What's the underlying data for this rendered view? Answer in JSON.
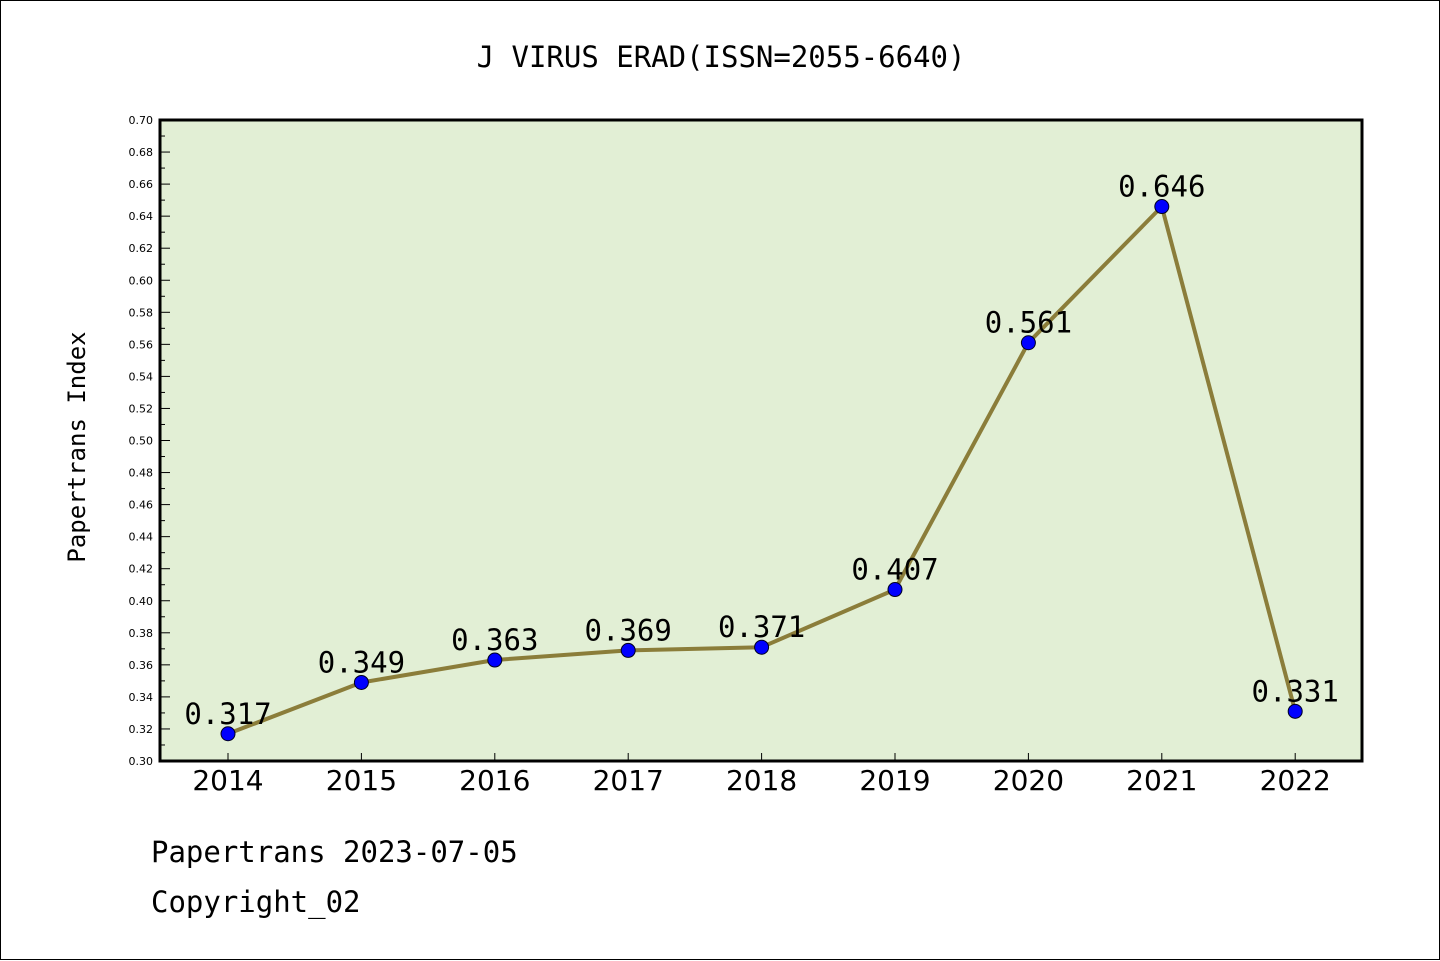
{
  "chart_data": {
    "type": "line",
    "title": "J VIRUS ERAD(ISSN=2055-6640)",
    "xlabel": "",
    "ylabel": "Papertrans Index",
    "categories": [
      "2014",
      "2015",
      "2016",
      "2017",
      "2018",
      "2019",
      "2020",
      "2021",
      "2022"
    ],
    "values": [
      0.317,
      0.349,
      0.363,
      0.369,
      0.371,
      0.407,
      0.561,
      0.646,
      0.331
    ],
    "data_labels": [
      "0.317",
      "0.349",
      "0.363",
      "0.369",
      "0.371",
      "0.407",
      "0.561",
      "0.646",
      "0.331"
    ],
    "ylim": [
      0.3,
      0.7
    ],
    "yticks": [
      "0.30",
      "0.32",
      "0.34",
      "0.36",
      "0.38",
      "0.40",
      "0.42",
      "0.44",
      "0.46",
      "0.48",
      "0.50",
      "0.52",
      "0.54",
      "0.56",
      "0.58",
      "0.60",
      "0.62",
      "0.64",
      "0.66",
      "0.68",
      "0.70"
    ],
    "grid": false,
    "colors": {
      "plot_background": "#e2efd5",
      "line": "#8b7d3a",
      "marker": "#0000ff"
    }
  },
  "footer": {
    "source": "Papertrans 2023-07-05",
    "copyright": "Copyright_02"
  }
}
